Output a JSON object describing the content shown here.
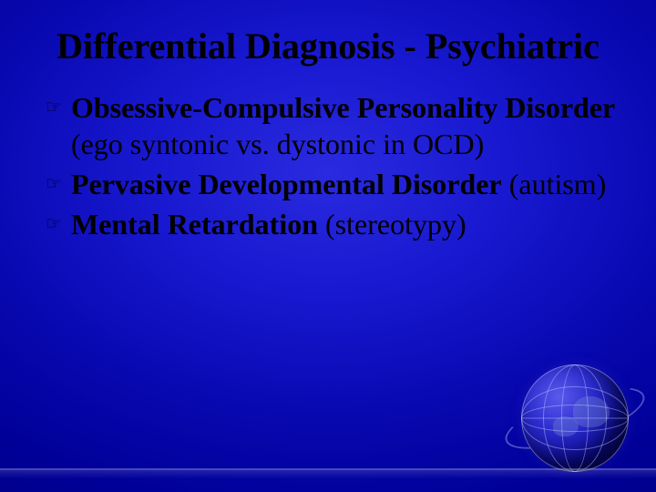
{
  "slide": {
    "title": "Differential Diagnosis - Psychiatric",
    "background_gradient": [
      "#2a2ae0",
      "#000070"
    ],
    "title_color": "#000000",
    "text_color": "#000000",
    "title_fontsize_pt": 30,
    "body_fontsize_pt": 24,
    "font_family": "Times New Roman",
    "bullet_glyph": "☞",
    "bullets": [
      {
        "bold": "Obsessive-Compulsive Personality Disorder",
        "rest": " (ego syntonic vs. dystonic in OCD)"
      },
      {
        "bold": "Pervasive Developmental Disorder",
        "rest": " (autism)"
      },
      {
        "bold": "Mental Retardation",
        "rest": " (stereotypy)"
      }
    ],
    "decorations": {
      "globe_icon": true,
      "footer_band": true
    }
  }
}
